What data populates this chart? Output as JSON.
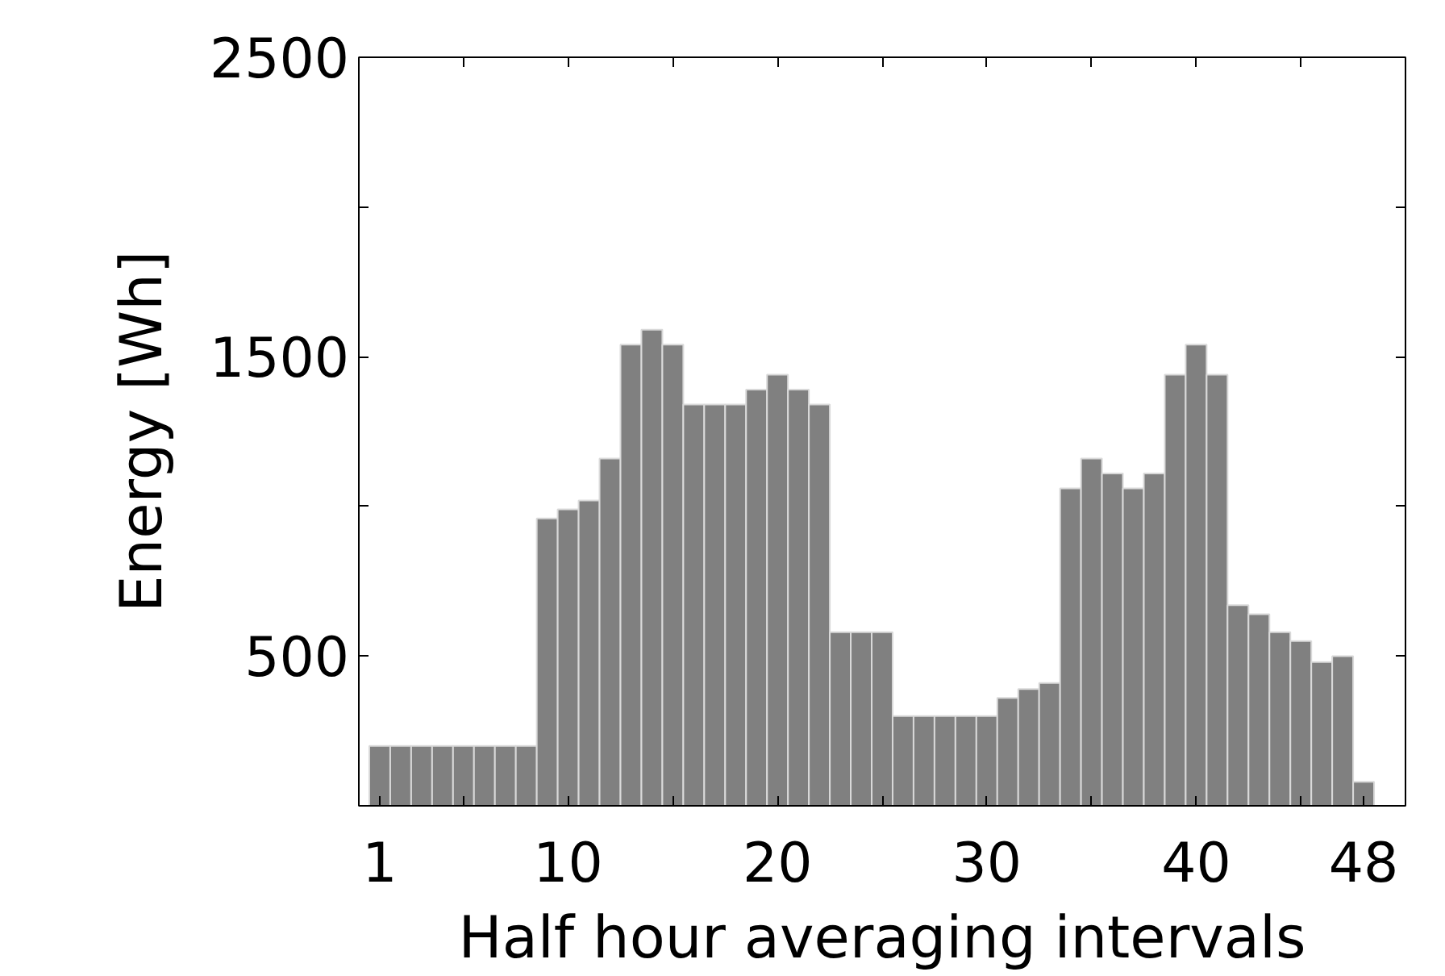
{
  "chart_data": {
    "type": "bar",
    "xlabel": "Half hour averaging intervals",
    "ylabel": "Energy [Wh]",
    "x": [
      1,
      2,
      3,
      4,
      5,
      6,
      7,
      8,
      9,
      10,
      11,
      12,
      13,
      14,
      15,
      16,
      17,
      18,
      19,
      20,
      21,
      22,
      23,
      24,
      25,
      26,
      27,
      28,
      29,
      30,
      31,
      32,
      33,
      34,
      35,
      36,
      37,
      38,
      39,
      40,
      41,
      42,
      43,
      44,
      45,
      46,
      47,
      48
    ],
    "values": [
      200,
      200,
      200,
      200,
      200,
      200,
      200,
      200,
      960,
      990,
      1020,
      1160,
      1540,
      1590,
      1540,
      1340,
      1340,
      1340,
      1390,
      1440,
      1390,
      1340,
      580,
      580,
      580,
      300,
      300,
      300,
      300,
      300,
      360,
      390,
      410,
      1060,
      1160,
      1110,
      1060,
      1110,
      1440,
      1540,
      1440,
      670,
      640,
      580,
      550,
      480,
      500,
      80
    ],
    "color": "#808080",
    "xlim": [
      0,
      50
    ],
    "xticks": [
      1,
      {
        "value": 5,
        "label": null
      },
      10,
      {
        "value": 15,
        "label": null
      },
      20,
      {
        "value": 25,
        "label": null
      },
      30,
      {
        "value": 35,
        "label": null
      },
      40,
      {
        "value": 45,
        "label": null
      },
      48
    ],
    "ylim": [
      0,
      2500
    ],
    "yticks": [
      500,
      {
        "value": 1000,
        "label": null
      },
      1500,
      {
        "value": 2000,
        "label": null
      },
      2500
    ],
    "grid": false
  }
}
